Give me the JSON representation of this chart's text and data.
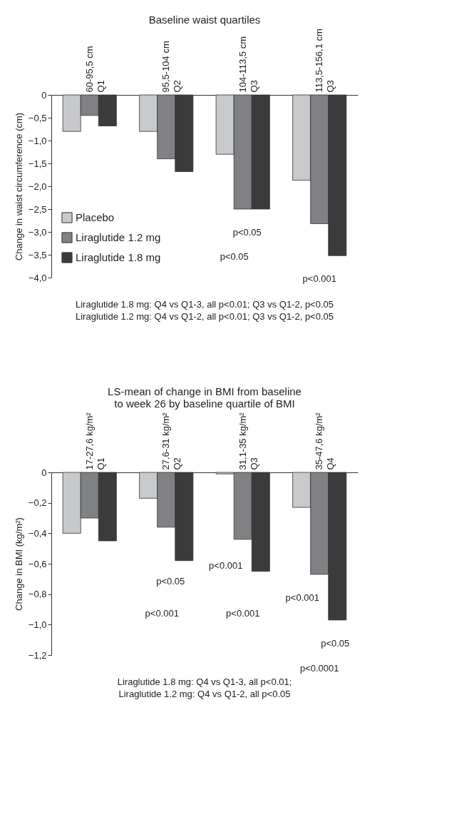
{
  "chart_data": [
    {
      "type": "bar",
      "title": "Baseline waist quartiles",
      "ylabel": "Change in waist circumference (cm)",
      "categories": [
        "60-95,5 cm\nQ1",
        "95,5-104 cm\nQ2",
        "104-113,5 cm\nQ3",
        "113,5-156,1 cm\nQ3"
      ],
      "series": [
        {
          "name": "Placebo",
          "color": "#c8c9cb",
          "values": [
            -0.8,
            -0.8,
            -1.3,
            -1.87
          ]
        },
        {
          "name": "Liraglutide 1.2 mg",
          "color": "#808184",
          "values": [
            -0.45,
            -1.4,
            -2.5,
            -2.82
          ]
        },
        {
          "name": "Liraglutide 1.8 mg",
          "color": "#3b3b3c",
          "values": [
            -0.68,
            -1.68,
            -2.5,
            -3.52
          ]
        }
      ],
      "ylim": [
        -4.0,
        0
      ],
      "yticks": [
        {
          "value": 0,
          "label": "0"
        },
        {
          "value": -0.5,
          "label": "−0,5"
        },
        {
          "value": -1.0,
          "label": "−1,0"
        },
        {
          "value": -1.5,
          "label": "−1,5"
        },
        {
          "value": -2.0,
          "label": "−2,0"
        },
        {
          "value": -2.5,
          "label": "−2,5"
        },
        {
          "value": -3.0,
          "label": "−3,0"
        },
        {
          "value": -3.5,
          "label": "−3,5"
        },
        {
          "value": -4.0,
          "label": "−4,0"
        }
      ],
      "grid": false,
      "legend": "bottom left",
      "annotations": [
        "p<0.05",
        "p<0.05",
        "p<0.001",
        "Liraglutide 1.8 mg: Q4 vs Q1-3, all p<0.01; Q3 vs Q1-2, p<0.05",
        "Liraglutide 1.2 mg: Q4 vs Q1-2, all p<0.01; Q3 vs Q1-2, p<0.05"
      ]
    },
    {
      "type": "bar",
      "title": "LS-mean of change in BMI from baseline\nto week 26 by baseline quartile of BMI",
      "ylabel": "Change in BMI (kg/m²)",
      "categories": [
        "17-27,6 kg/m²\nQ1",
        "27,6-31 kg/m²\nQ2",
        "31,1-35 kg/m²\nQ3",
        "35-47,6 kg/m²\nQ4"
      ],
      "series": [
        {
          "name": "Placebo",
          "color": "#c8c9cb",
          "values": [
            -0.4,
            -0.17,
            -0.01,
            -0.23
          ]
        },
        {
          "name": "Liraglutide 1.2 mg",
          "color": "#808184",
          "values": [
            -0.3,
            -0.36,
            -0.44,
            -0.67
          ]
        },
        {
          "name": "Liraglutide 1.8 mg",
          "color": "#3b3b3c",
          "values": [
            -0.45,
            -0.58,
            -0.65,
            -0.97
          ]
        }
      ],
      "ylim": [
        -1.2,
        0
      ],
      "yticks": [
        {
          "value": 0,
          "label": "0"
        },
        {
          "value": -0.2,
          "label": "−0,2"
        },
        {
          "value": -0.4,
          "label": "−0,4"
        },
        {
          "value": -0.6,
          "label": "−0,6"
        },
        {
          "value": -0.8,
          "label": "−0,8"
        },
        {
          "value": -1.0,
          "label": "−1,0"
        },
        {
          "value": -1.2,
          "label": "−1,2"
        }
      ],
      "grid": false,
      "legend": "bottom left",
      "annotations": [
        "p<0.05",
        "p<0.001",
        "p<0.001",
        "p<0.001",
        "p<0.001",
        "p<0.05",
        "p<0.0001",
        "Liraglutide 1.8 mg: Q4 vs Q1-3, all p<0.01;",
        "Liraglutide 1.2 mg: Q4 vs Q1-2, all p<0.05"
      ]
    }
  ]
}
